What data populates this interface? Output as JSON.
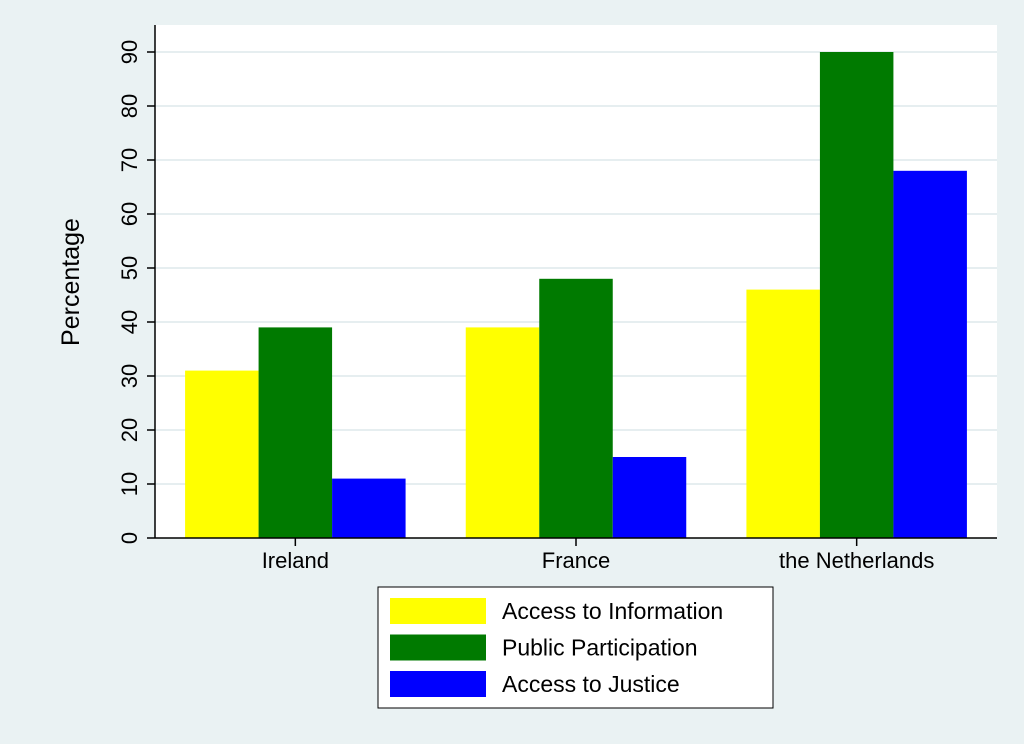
{
  "chart_data": {
    "type": "bar",
    "categories": [
      "Ireland",
      "France",
      "the Netherlands"
    ],
    "series": [
      {
        "name": "Access to Information",
        "color": "#ffff00",
        "values": [
          31,
          39,
          46
        ]
      },
      {
        "name": "Public Participation",
        "color": "#007a00",
        "values": [
          39,
          48,
          90
        ]
      },
      {
        "name": "Access to Justice",
        "color": "#0000ff",
        "values": [
          11,
          15,
          68
        ]
      }
    ],
    "ylabel": "Percentage",
    "xlabel": "",
    "ylim": [
      0,
      95
    ],
    "yticks": [
      0,
      10,
      20,
      30,
      40,
      50,
      60,
      70,
      80,
      90
    ],
    "grid": true,
    "legend_position": "bottom"
  }
}
